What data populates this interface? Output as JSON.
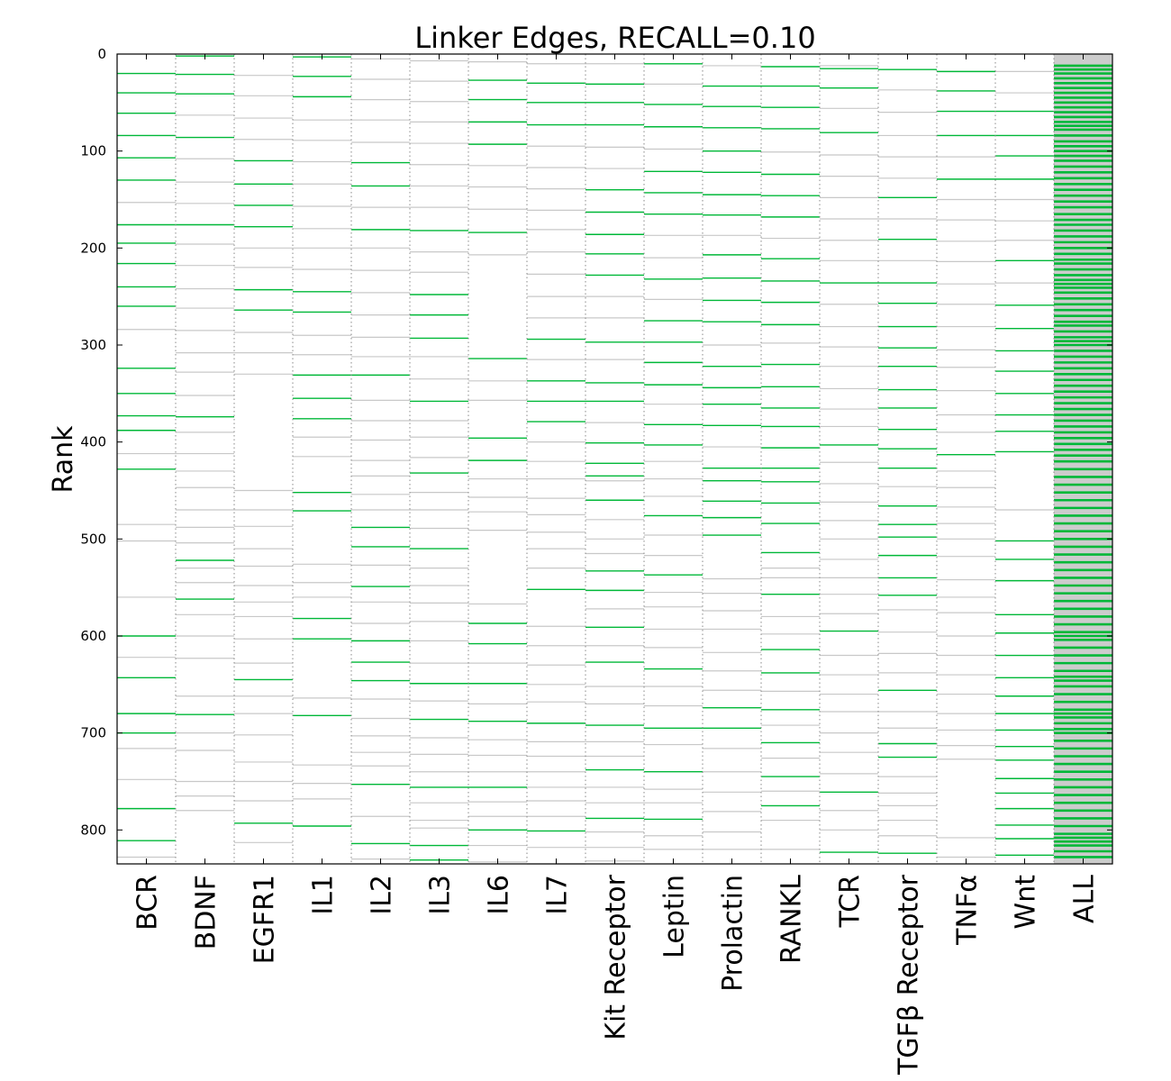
{
  "chart_data": {
    "type": "heatmap",
    "title": "Linker Edges, RECALL=0.10",
    "ylabel": "Rank",
    "xlabel": "",
    "ylim": [
      835,
      0
    ],
    "yticks": [
      0,
      100,
      200,
      300,
      400,
      500,
      600,
      700,
      800
    ],
    "grid": "vertical dotted column separators",
    "colors": {
      "positive": "#00b838",
      "negative": "#c8c8c8",
      "all_background": "#cccccc"
    },
    "legend": "none",
    "series": [
      {
        "category": "BCR",
        "positive": [
          20,
          40,
          61,
          84,
          107,
          130,
          176,
          195,
          216,
          240,
          260,
          324,
          350,
          373,
          388,
          428,
          600,
          643,
          680,
          700,
          778,
          811
        ],
        "negative": [
          153,
          284,
          412,
          485,
          502,
          560,
          622,
          716,
          748,
          828
        ]
      },
      {
        "category": "BDNF",
        "positive": [
          2,
          21,
          41,
          86,
          176,
          374,
          522,
          562,
          681
        ],
        "negative": [
          63,
          108,
          132,
          154,
          196,
          218,
          242,
          262,
          285,
          308,
          328,
          352,
          390,
          412,
          430,
          447,
          470,
          488,
          504,
          530,
          545,
          578,
          600,
          623,
          662,
          700,
          718,
          750,
          765,
          780
        ]
      },
      {
        "category": "EGFR1",
        "positive": [
          110,
          134,
          156,
          178,
          243,
          264,
          645,
          793
        ],
        "negative": [
          22,
          43,
          66,
          88,
          200,
          220,
          287,
          308,
          330,
          450,
          470,
          487,
          510,
          528,
          548,
          565,
          580,
          603,
          628,
          662,
          680,
          702,
          730,
          750,
          770,
          813
        ]
      },
      {
        "category": "IL1",
        "positive": [
          3,
          23,
          44,
          245,
          266,
          331,
          355,
          376,
          452,
          471,
          582,
          603,
          682,
          796
        ],
        "negative": [
          68,
          89,
          111,
          134,
          157,
          180,
          200,
          222,
          290,
          310,
          395,
          415,
          526,
          545,
          560,
          664,
          733,
          752,
          768
        ]
      },
      {
        "category": "IL2",
        "positive": [
          112,
          136,
          181,
          331,
          488,
          508,
          549,
          605,
          627,
          646,
          753,
          814
        ],
        "negative": [
          5,
          26,
          47,
          68,
          91,
          158,
          200,
          223,
          246,
          269,
          292,
          312,
          357,
          378,
          398,
          419,
          435,
          454,
          470,
          527,
          565,
          587,
          665,
          685,
          703,
          720,
          734,
          786,
          830
        ]
      },
      {
        "category": "IL3",
        "positive": [
          182,
          248,
          269,
          293,
          358,
          432,
          510,
          649,
          686,
          756,
          816,
          831
        ],
        "negative": [
          7,
          28,
          49,
          70,
          92,
          114,
          136,
          158,
          204,
          225,
          312,
          335,
          378,
          395,
          416,
          452,
          470,
          489,
          530,
          548,
          566,
          585,
          605,
          628,
          667,
          705,
          722,
          740,
          772,
          790,
          798
        ]
      },
      {
        "category": "IL6",
        "positive": [
          27,
          47,
          70,
          93,
          184,
          314,
          396,
          419,
          587,
          608,
          649,
          688,
          756,
          800
        ],
        "negative": [
          8,
          115,
          137,
          160,
          207,
          337,
          357,
          438,
          457,
          472,
          491,
          567,
          628,
          670,
          707,
          723,
          740,
          771,
          786,
          816,
          833
        ]
      },
      {
        "category": "IL7",
        "positive": [
          30,
          50,
          73,
          294,
          337,
          358,
          379,
          552,
          690,
          801
        ],
        "negative": [
          10,
          95,
          117,
          139,
          161,
          181,
          204,
          227,
          250,
          272,
          315,
          400,
          420,
          438,
          458,
          475,
          493,
          510,
          530,
          590,
          610,
          630,
          650,
          668,
          709,
          724,
          740,
          756,
          770,
          786,
          818,
          835
        ]
      },
      {
        "category": "Kit Receptor",
        "positive": [
          31,
          50,
          73,
          140,
          163,
          186,
          206,
          228,
          297,
          339,
          358,
          401,
          422,
          435,
          460,
          533,
          553,
          591,
          627,
          692,
          738,
          788
        ],
        "negative": [
          10,
          96,
          118,
          250,
          272,
          315,
          380,
          440,
          480,
          500,
          515,
          572,
          610,
          652,
          670,
          709,
          724,
          756,
          772,
          802,
          818,
          832
        ]
      },
      {
        "category": "Leptin",
        "positive": [
          10,
          52,
          75,
          121,
          143,
          165,
          232,
          275,
          297,
          318,
          341,
          382,
          403,
          476,
          537,
          634,
          695,
          740,
          789
        ],
        "negative": [
          31,
          98,
          187,
          210,
          253,
          361,
          420,
          438,
          456,
          496,
          517,
          555,
          570,
          593,
          612,
          652,
          672,
          712,
          758,
          772,
          806,
          820
        ]
      },
      {
        "category": "Prolactin",
        "positive": [
          33,
          54,
          76,
          100,
          122,
          145,
          166,
          207,
          231,
          254,
          276,
          322,
          344,
          361,
          383,
          427,
          440,
          461,
          478,
          496,
          674,
          695
        ],
        "negative": [
          12,
          187,
          300,
          405,
          541,
          556,
          574,
          593,
          617,
          636,
          656,
          716,
          740,
          761,
          781,
          802,
          820
        ]
      },
      {
        "category": "RANKL",
        "positive": [
          13,
          33,
          55,
          77,
          124,
          146,
          168,
          211,
          234,
          256,
          279,
          320,
          343,
          365,
          384,
          406,
          427,
          441,
          463,
          484,
          514,
          557,
          614,
          638,
          676,
          710,
          745,
          775
        ],
        "negative": [
          101,
          190,
          298,
          530,
          540,
          580,
          598,
          657,
          692,
          726,
          760,
          790,
          820
        ]
      },
      {
        "category": "TCR",
        "positive": [
          15,
          35,
          81,
          236,
          403,
          595,
          761,
          823
        ],
        "negative": [
          12,
          56,
          104,
          126,
          148,
          170,
          192,
          213,
          258,
          281,
          302,
          322,
          345,
          366,
          384,
          421,
          443,
          462,
          481,
          500,
          521,
          540,
          557,
          577,
          620,
          640,
          660,
          678,
          700,
          720,
          742,
          780,
          800
        ]
      },
      {
        "category": "TGFβ Receptor",
        "positive": [
          16,
          148,
          191,
          236,
          257,
          281,
          303,
          322,
          346,
          365,
          387,
          407,
          427,
          466,
          485,
          498,
          517,
          540,
          558,
          656,
          711,
          725,
          824
        ],
        "negative": [
          37,
          60,
          84,
          106,
          128,
          170,
          213,
          446,
          573,
          596,
          618,
          638,
          678,
          695,
          745,
          762,
          775,
          790,
          806
        ]
      },
      {
        "category": "TNFα",
        "positive": [
          18,
          38,
          59,
          84,
          129,
          413
        ],
        "negative": [
          106,
          150,
          171,
          193,
          214,
          237,
          258,
          281,
          305,
          323,
          347,
          372,
          390,
          430,
          447,
          467,
          484,
          500,
          518,
          542,
          560,
          576,
          600,
          620,
          640,
          660,
          680,
          697,
          713,
          727,
          808,
          828
        ]
      },
      {
        "category": "Wnt",
        "positive": [
          59,
          84,
          105,
          129,
          213,
          259,
          283,
          306,
          327,
          350,
          372,
          389,
          410,
          502,
          521,
          543,
          578,
          597,
          620,
          643,
          662,
          680,
          697,
          714,
          728,
          747,
          762,
          778,
          795,
          809,
          826
        ],
        "negative": [
          18,
          40,
          150,
          172,
          192,
          236,
          470
        ]
      },
      {
        "category": "ALL",
        "positive": [
          12,
          16,
          20,
          25,
          30,
          35,
          40,
          45,
          50,
          55,
          60,
          65,
          70,
          74,
          78,
          84,
          90,
          95,
          100,
          105,
          110,
          116,
          122,
          128,
          134,
          140,
          146,
          152,
          158,
          165,
          171,
          176,
          182,
          188,
          194,
          200,
          206,
          212,
          216,
          222,
          228,
          233,
          237,
          241,
          246,
          252,
          258,
          264,
          270,
          276,
          280,
          286,
          292,
          296,
          300,
          306,
          312,
          318,
          324,
          330,
          336,
          342,
          348,
          354,
          360,
          366,
          372,
          378,
          384,
          390,
          396,
          402,
          408,
          414,
          420,
          428,
          436,
          444,
          452,
          460,
          468,
          476,
          484,
          492,
          500,
          508,
          516,
          524,
          532,
          540,
          548,
          556,
          564,
          572,
          580,
          588,
          596,
          600,
          604,
          612,
          620,
          628,
          636,
          642,
          646,
          652,
          660,
          668,
          676,
          680,
          684,
          690,
          696,
          700,
          708,
          716,
          724,
          732,
          740,
          748,
          756,
          764,
          772,
          780,
          788,
          796,
          804,
          808,
          812,
          816,
          822,
          828
        ],
        "negative": []
      }
    ]
  }
}
